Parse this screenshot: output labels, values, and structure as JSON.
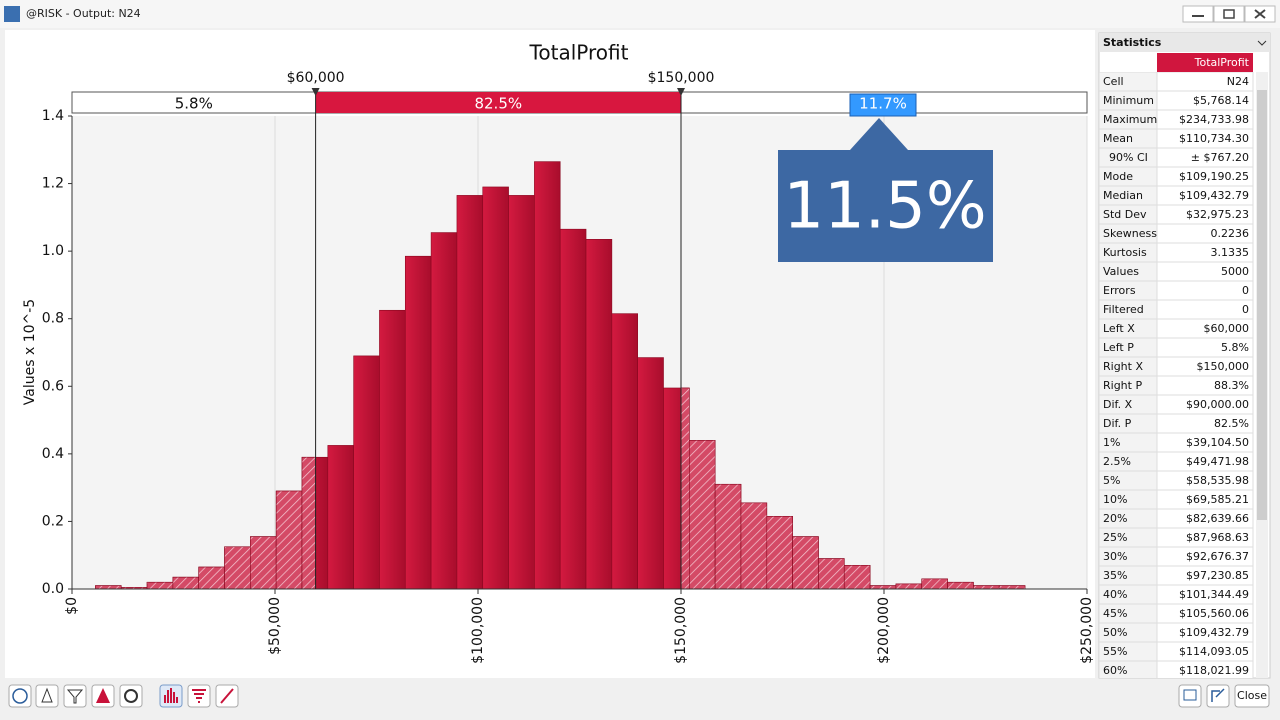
{
  "window_title": "@RISK - Output: N24",
  "chart_data": {
    "type": "histogram",
    "title": "TotalProfit",
    "y_label": "Values x 10^-5",
    "bins": [
      5768.14,
      12128.3,
      18488.46,
      24848.62,
      31208.78,
      37568.94,
      43929.1,
      50289.26,
      56649.42,
      63009.58,
      69369.74,
      75729.9,
      82090.06,
      88450.22,
      94810.38,
      101170.54,
      107530.7,
      113890.86,
      120251.02,
      126611.18,
      132971.34,
      139331.5,
      145691.66,
      152051.82,
      158411.98,
      164772.14,
      171132.3,
      177492.46,
      183852.62,
      190212.78,
      196572.94,
      202933.1,
      209293.26,
      215653.42,
      222013.58,
      228373.74,
      234733.9
    ],
    "values": [
      0.01,
      0.005,
      0.02,
      0.035,
      0.065,
      0.125,
      0.155,
      0.29,
      0.39,
      0.425,
      0.69,
      0.825,
      0.985,
      1.055,
      1.165,
      1.19,
      1.165,
      1.265,
      1.065,
      1.035,
      0.815,
      0.685,
      0.595,
      0.44,
      0.31,
      0.255,
      0.215,
      0.155,
      0.09,
      0.07,
      0.01,
      0.015,
      0.03,
      0.02,
      0.01,
      0.01
    ],
    "color": "#c8123a",
    "xlim": [
      0,
      250000
    ],
    "xticks": [
      {
        "value": 0,
        "label": "$0"
      },
      {
        "value": 50000,
        "label": "$50,000"
      },
      {
        "value": 100000,
        "label": "$100,000"
      },
      {
        "value": 150000,
        "label": "$150,000"
      },
      {
        "value": 200000,
        "label": "$200,000"
      },
      {
        "value": 250000,
        "label": "$250,000"
      }
    ],
    "ylim": [
      0,
      1.4
    ],
    "yticks": [
      {
        "value": 0,
        "label": "0.0"
      },
      0.2,
      0.4,
      0.6,
      0.8,
      {
        "value": 1,
        "label": "1.0"
      },
      1.2,
      1.4
    ],
    "xgrid": true,
    "delimiters": [
      {
        "value": 60000,
        "label": "$60,000"
      },
      {
        "value": 150000,
        "label": "$150,000"
      }
    ]
  },
  "delimiter_percents": [
    "5.8%",
    "82.5%",
    "11.7%"
  ],
  "callout": "11.5%",
  "statistics": {
    "title": "Statistics",
    "column": "TotalProfit",
    "rows": [
      [
        "Cell",
        "N24"
      ],
      [
        "Minimum",
        "$5,768.14"
      ],
      [
        "Maximum",
        "$234,733.98"
      ],
      [
        "Mean",
        "$110,734.30"
      ],
      [
        "90% CI",
        "± $767.20"
      ],
      [
        "Mode",
        "$109,190.25"
      ],
      [
        "Median",
        "$109,432.79"
      ],
      [
        "Std Dev",
        "$32,975.23"
      ],
      [
        "Skewness",
        "0.2236"
      ],
      [
        "Kurtosis",
        "3.1335"
      ],
      [
        "Values",
        "5000"
      ],
      [
        "Errors",
        "0"
      ],
      [
        "Filtered",
        "0"
      ],
      [
        "Left X",
        "$60,000"
      ],
      [
        "Left P",
        "5.8%"
      ],
      [
        "Right X",
        "$150,000"
      ],
      [
        "Right P",
        "88.3%"
      ],
      [
        "Dif. X",
        "$90,000.00"
      ],
      [
        "Dif. P",
        "82.5%"
      ],
      [
        "1%",
        "$39,104.50"
      ],
      [
        "2.5%",
        "$49,471.98"
      ],
      [
        "5%",
        "$58,535.98"
      ],
      [
        "10%",
        "$69,585.21"
      ],
      [
        "20%",
        "$82,639.66"
      ],
      [
        "25%",
        "$87,968.63"
      ],
      [
        "30%",
        "$92,676.37"
      ],
      [
        "35%",
        "$97,230.85"
      ],
      [
        "40%",
        "$101,344.49"
      ],
      [
        "45%",
        "$105,560.06"
      ],
      [
        "50%",
        "$109,432.79"
      ],
      [
        "55%",
        "$114,093.05"
      ],
      [
        "60%",
        "$118,021.99"
      ]
    ]
  },
  "close_button": "Close"
}
